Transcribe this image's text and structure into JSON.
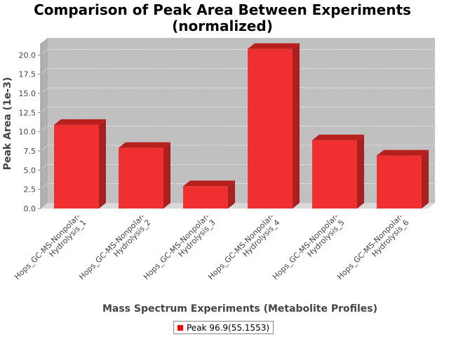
{
  "chart_data": {
    "type": "bar",
    "title_lines": [
      "Comparison of Peak Area Between Experiments",
      "(normalized)"
    ],
    "xlabel": "Mass Spectrum Experiments (Metabolite Profiles)",
    "ylabel": "Peak Area (1e-3)",
    "categories": [
      [
        "Hops_GC-MS-Nonpolar-",
        "Hydrolysis_1"
      ],
      [
        "Hops_GC-MS-Nonpolar-",
        "Hydrolysis_2"
      ],
      [
        "Hops_GC-MS-Nonpolar-",
        "Hydrolysis_3"
      ],
      [
        "Hops_GC-MS-Nonpolar-",
        "Hydrolysis_4"
      ],
      [
        "Hops_GC-MS-Nonpolar-",
        "Hydrolysis_5"
      ],
      [
        "Hops_GC-MS-Nonpolar-",
        "Hydrolysis_6"
      ]
    ],
    "series": [
      {
        "name": "Peak 96.9(55.1553)",
        "values": [
          10.9,
          7.9,
          2.9,
          20.8,
          8.9,
          6.9
        ]
      }
    ],
    "ylim": [
      0,
      21.5
    ],
    "yticks": [
      "0.0",
      "2.5",
      "5.0",
      "7.5",
      "10.0",
      "12.5",
      "15.0",
      "17.5",
      "20.0"
    ],
    "grid": true,
    "legend_position": "bottom",
    "colors": {
      "bar_front": "#f03030",
      "bar_top": "#b82020",
      "bar_side": "#a82020",
      "plot_back": "#c0c0c0",
      "plot_floor": "#d8d8d8",
      "gridline": "#ffffff"
    }
  },
  "legend": {
    "swatch_color": "#ff0000",
    "label": "Peak 96.9(55.1553)"
  }
}
